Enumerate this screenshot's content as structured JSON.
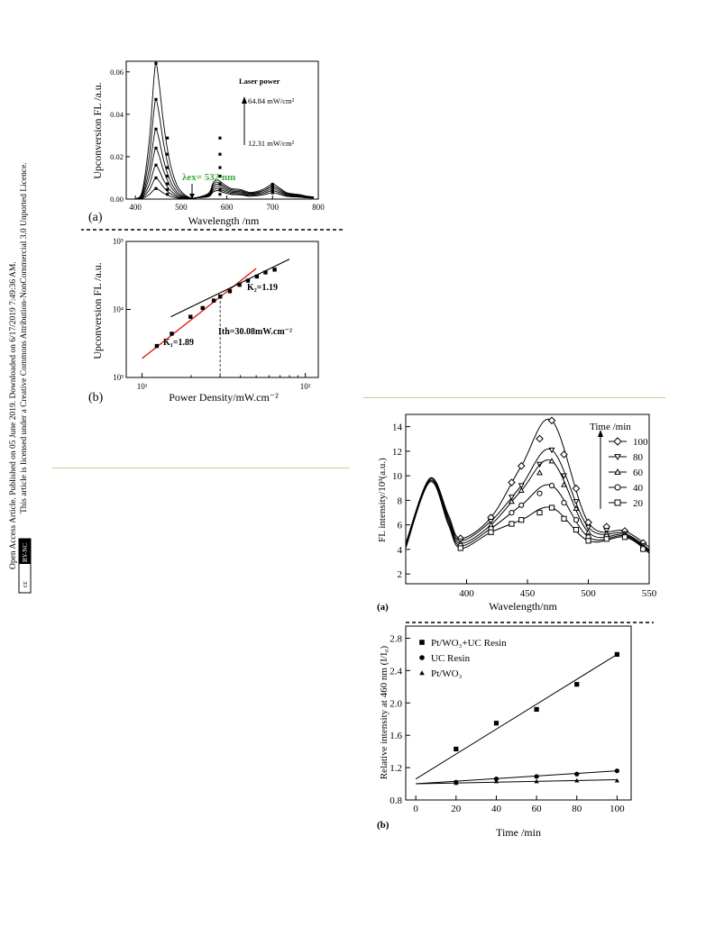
{
  "sidebar": {
    "line1": "Open Access Article. Published on 05 June 2019. Downloaded on 6/17/2019 7:49:36 AM.",
    "line2": "This article is licensed under a Creative Commons Attribution-NonCommercial 3.0 Unported Licence.",
    "badge_cc": "cc",
    "badge_bync": "BY-NC"
  },
  "fig1a": {
    "panel": "(a)",
    "ylabel": "Upconversion FL /a.u.",
    "xlabel": "Wavelength /nm",
    "xticks": [
      "400",
      "500",
      "600",
      "700",
      "800"
    ],
    "yticks": [
      "0.00",
      "0.02",
      "0.04",
      "0.06"
    ],
    "legend_title": "Laser power",
    "legend_high": "64.84 mW/cm²",
    "legend_low": "12.31 mW/cm²",
    "excitation": "λex= 532 nm",
    "excitation_color": "#3aa83a"
  },
  "fig1b": {
    "panel": "(b)",
    "ylabel": "Upconversion FL /a.u.",
    "xlabel": "Power Density/mW.cm⁻²",
    "xticks": [
      "10¹",
      "10²"
    ],
    "yticks": [
      "10³",
      "10⁴",
      "10⁵"
    ],
    "k1": "K₁=1.89",
    "k2": "K₂=1.19",
    "ith": "Ith=30.08mW.cm⁻²",
    "fit1_color": "#e0201a"
  },
  "fig2a": {
    "panel": "(a)",
    "ylabel": "FL intensity/10³(a.u.)",
    "xlabel": "Wavelength/nm",
    "xticks": [
      "400",
      "450",
      "500",
      "550"
    ],
    "yticks": [
      "2",
      "4",
      "6",
      "8",
      "10",
      "12",
      "14"
    ],
    "legend_title": "Time /min",
    "legend": [
      "100",
      "80",
      "60",
      "40",
      "20"
    ]
  },
  "fig2b": {
    "panel": "(b)",
    "ylabel": "Relative intensity at 460 nm (I/I₀)",
    "xlabel": "Time /min",
    "xticks": [
      "0",
      "20",
      "40",
      "60",
      "80",
      "100"
    ],
    "yticks": [
      "0.8",
      "1.2",
      "1.6",
      "2.0",
      "2.4",
      "2.8"
    ],
    "legend": [
      "Pt/WO₃+UC Resin",
      "UC Resin",
      "Pt/WO₃"
    ]
  },
  "chart_data": [
    {
      "type": "line",
      "title": "",
      "xlabel": "Wavelength /nm",
      "ylabel": "Upconversion FL /a.u.",
      "xlim": [
        380,
        800
      ],
      "ylim": [
        0,
        0.065
      ],
      "peak_wavelength_nm": 445,
      "series": [
        {
          "values_at": [
            445,
            580,
            700
          ],
          "values": [
            0.064,
            0.009,
            0.007
          ]
        },
        {
          "values_at": [
            445,
            580,
            700
          ],
          "values": [
            0.047,
            0.008,
            0.006
          ]
        },
        {
          "values_at": [
            445,
            580,
            700
          ],
          "values": [
            0.033,
            0.007,
            0.006
          ]
        },
        {
          "values_at": [
            445,
            580,
            700
          ],
          "values": [
            0.024,
            0.006,
            0.005
          ]
        },
        {
          "values_at": [
            445,
            580,
            700
          ],
          "values": [
            0.016,
            0.005,
            0.004
          ]
        },
        {
          "values_at": [
            445,
            580,
            700
          ],
          "values": [
            0.01,
            0.004,
            0.004
          ]
        },
        {
          "values_at": [
            445,
            580,
            700
          ],
          "values": [
            0.005,
            0.004,
            0.003
          ]
        }
      ]
    },
    {
      "type": "scatter",
      "xlabel": "Power Density/mW.cm⁻²",
      "ylabel": "Upconversion FL /a.u.",
      "xscale": "log",
      "yscale": "log",
      "xlim": [
        8,
        120
      ],
      "ylim": [
        1000,
        100000
      ],
      "x": [
        12.31,
        15.2,
        19.8,
        23.5,
        27.5,
        30.1,
        34.5,
        39.5,
        44.5,
        50.5,
        57.0,
        64.84
      ],
      "y": [
        2900,
        4400,
        7800,
        10500,
        13500,
        15500,
        18500,
        23000,
        26500,
        30500,
        35000,
        38500
      ],
      "fits": [
        {
          "label": "K₁=1.89",
          "x": [
            10,
            50
          ],
          "y": [
            1900,
            40000
          ]
        },
        {
          "label": "K₂=1.19",
          "x": [
            15,
            80
          ],
          "y": [
            7800,
            55000
          ]
        }
      ],
      "threshold_x": 30.08
    },
    {
      "type": "line",
      "xlabel": "Wavelength/nm",
      "ylabel": "FL intensity/10³(a.u.)",
      "xlim": [
        350,
        550
      ],
      "ylim": [
        1.2,
        15
      ],
      "x": [
        350,
        370,
        385,
        395,
        420,
        445,
        470,
        500,
        530,
        550
      ],
      "series": [
        {
          "name": "100",
          "values": [
            4.5,
            9.8,
            6.8,
            4.9,
            6.6,
            10.8,
            14.5,
            6.2,
            5.5,
            4.2
          ]
        },
        {
          "name": "80",
          "values": [
            4.4,
            9.8,
            6.6,
            4.7,
            6.3,
            9.2,
            12.1,
            5.8,
            5.3,
            4.0
          ]
        },
        {
          "name": "60",
          "values": [
            4.3,
            9.7,
            6.4,
            4.5,
            6.0,
            8.8,
            11.2,
            5.4,
            5.2,
            3.9
          ]
        },
        {
          "name": "40",
          "values": [
            4.2,
            9.6,
            6.2,
            4.3,
            5.7,
            7.6,
            9.2,
            5.0,
            5.1,
            3.8
          ]
        },
        {
          "name": "20",
          "values": [
            4.1,
            9.5,
            6.0,
            4.1,
            5.4,
            6.4,
            7.4,
            4.7,
            5.0,
            3.7
          ]
        }
      ]
    },
    {
      "type": "scatter",
      "xlabel": "Time /min",
      "ylabel": "Relative intensity at 460 nm (I/I₀)",
      "xlim": [
        -5,
        107
      ],
      "ylim": [
        0.8,
        2.95
      ],
      "x": [
        20,
        40,
        60,
        80,
        100
      ],
      "series": [
        {
          "name": "Pt/WO₃+UC Resin",
          "values": [
            1.43,
            1.75,
            1.92,
            2.23,
            2.6
          ],
          "fit": [
            1.06,
            2.6
          ]
        },
        {
          "name": "UC Resin",
          "values": [
            1.02,
            1.06,
            1.09,
            1.12,
            1.16
          ],
          "fit": [
            1.0,
            1.16
          ]
        },
        {
          "name": "Pt/WO₃",
          "values": [
            1.01,
            1.03,
            1.03,
            1.04,
            1.04
          ],
          "fit": [
            1.0,
            1.05
          ]
        }
      ]
    }
  ]
}
